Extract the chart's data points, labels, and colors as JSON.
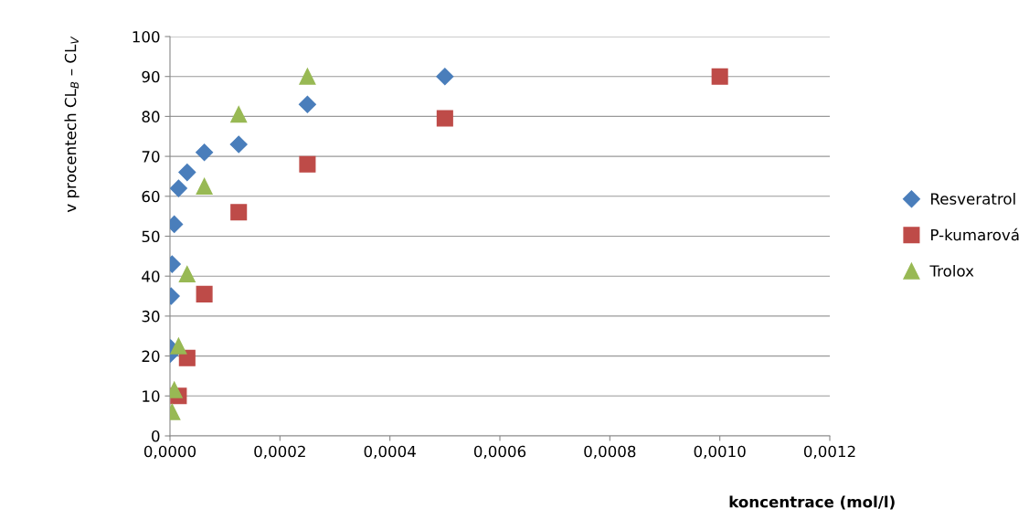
{
  "chart_data": {
    "type": "scatter",
    "xlabel": "koncentrace (mol/l)",
    "ylabel": "v procentech CL$_{B}$ – CL$_{V}$",
    "xlim": [
      0,
      0.0012
    ],
    "xticks": [
      {
        "value": 0,
        "label": "0,0000"
      },
      {
        "value": 0.0002,
        "label": "0,0002"
      },
      {
        "value": 0.0004,
        "label": "0,0004"
      },
      {
        "value": 0.0006,
        "label": "0,0006"
      },
      {
        "value": 0.0008,
        "label": "0,0008"
      },
      {
        "value": 0.001,
        "label": "0,0010"
      },
      {
        "value": 0.0012,
        "label": "0,0012"
      }
    ],
    "ylim": [
      0,
      100
    ],
    "yticks": [
      0,
      10,
      20,
      30,
      40,
      50,
      60,
      70,
      80,
      90,
      100
    ],
    "grid": "y",
    "legend": "right",
    "series": [
      {
        "name": "Resveratrol",
        "color": "#4a7ebb",
        "marker": "diamond",
        "x": [
          0.0005,
          0.00025,
          0.000125,
          6.25e-05,
          3.125e-05,
          1.56e-05,
          7.8e-06,
          3.9e-06,
          2e-06,
          1e-06,
          5e-07
        ],
        "values": [
          90,
          83,
          73,
          71,
          66,
          62,
          53,
          43,
          35,
          22,
          20.5
        ]
      },
      {
        "name": "P-kumarová",
        "color": "#be4b48",
        "marker": "square",
        "x": [
          0.001,
          0.0005,
          0.00025,
          0.000125,
          6.25e-05,
          3.125e-05,
          1.56e-05
        ],
        "values": [
          90,
          79.5,
          68,
          56,
          35.5,
          19.5,
          10
        ]
      },
      {
        "name": "Trolox",
        "color": "#98b954",
        "marker": "triangle",
        "x": [
          0.00025,
          0.000125,
          6.25e-05,
          3.125e-05,
          1.56e-05,
          7.8e-06,
          3.9e-06
        ],
        "values": [
          90,
          80.5,
          62.5,
          40.5,
          22.5,
          11.5,
          6
        ]
      }
    ]
  }
}
